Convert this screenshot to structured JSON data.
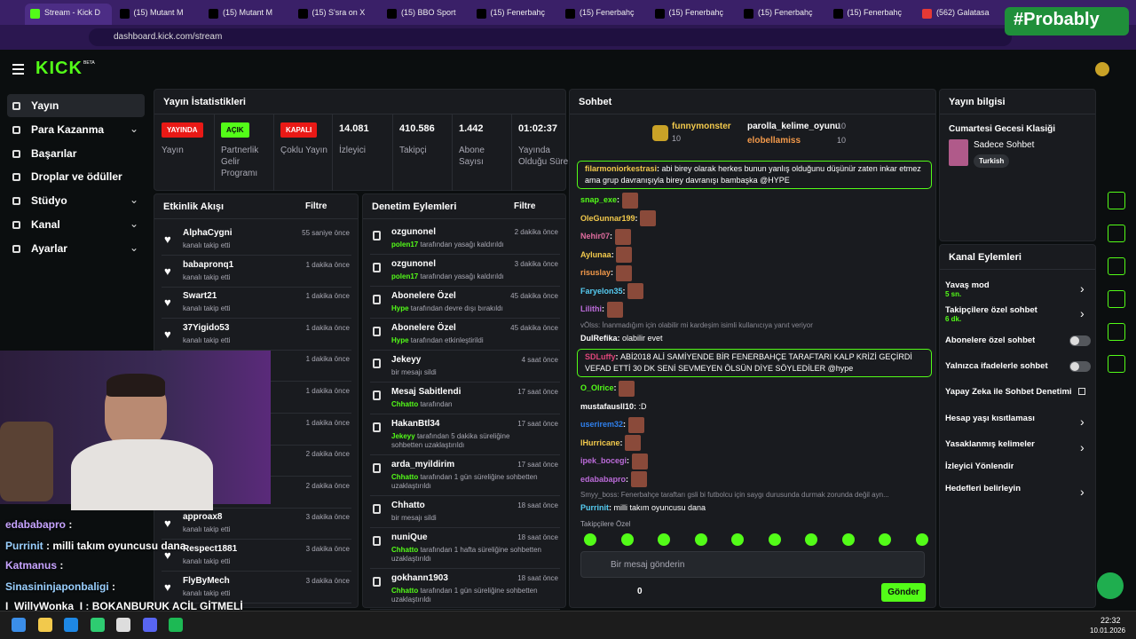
{
  "browser": {
    "tabs": [
      "Stream - Kick D",
      "(15) Mutant M",
      "(15) Mutant M",
      "(15) S'sra on X",
      "(15) BBO Sport",
      "(15) Fenerbahç",
      "(15) Fenerbahç",
      "(15) Fenerbahç",
      "(15) Fenerbahç",
      "(15) Fenerbahç",
      "(562) Galatasa"
    ],
    "address": "dashboard.kick.com/stream",
    "overlay_tag": "#Probably"
  },
  "sidebar": {
    "logo": "KICK",
    "logo_badge": "BETA",
    "nav": [
      "Yayın",
      "Para Kazanma",
      "Başarılar",
      "Droplar ve ödüller",
      "Stüdyo",
      "Kanal",
      "Ayarlar"
    ]
  },
  "stats": {
    "title": "Yayın İstatistikleri",
    "items": [
      {
        "badge": "YAYINDA",
        "label": "Yayın"
      },
      {
        "badge": "AÇIK",
        "label": "Partnerlik Gelir Programı"
      },
      {
        "badge": "KAPALI",
        "label": "Çoklu Yayın"
      },
      {
        "value": "14.081",
        "label": "İzleyici"
      },
      {
        "value": "410.586",
        "label": "Takipçi"
      },
      {
        "value": "1.442",
        "label": "Abone Sayısı"
      },
      {
        "value": "01:02:37",
        "label": "Yayında Olduğu Süre"
      }
    ]
  },
  "activity": {
    "title": "Etkinlik Akışı",
    "filter": "Filtre",
    "items": [
      {
        "name": "AlphaCygni",
        "action": "kanalı takip etti",
        "time": "55 saniye önce"
      },
      {
        "name": "babapronq1",
        "action": "kanalı takip etti",
        "time": "1 dakika önce"
      },
      {
        "name": "Swart21",
        "action": "kanalı takip etti",
        "time": "1 dakika önce"
      },
      {
        "name": "37Yigido53",
        "action": "kanalı takip etti",
        "time": "1 dakika önce"
      },
      {
        "time": "1 dakika önce"
      },
      {
        "time": "1 dakika önce"
      },
      {
        "time": "1 dakika önce"
      },
      {
        "time": "2 dakika önce"
      },
      {
        "name": "one",
        "action": "1 aylık abone oldular",
        "time": "2 dakika önce"
      },
      {
        "name": "approax8",
        "action": "kanalı takip etti",
        "time": "3 dakika önce"
      },
      {
        "name": "Respect1881",
        "action": "kanalı takip etti",
        "time": "3 dakika önce"
      },
      {
        "name": "FlyByMech",
        "action": "kanalı takip etti",
        "time": "3 dakika önce"
      }
    ]
  },
  "moderation": {
    "title": "Denetim Eylemleri",
    "filter": "Filtre",
    "items": [
      {
        "name": "ozgunonel",
        "actor": "polen17",
        "text": "tarafından yasağı kaldırıldı",
        "time": "2 dakika önce"
      },
      {
        "name": "ozgunonel",
        "actor": "polen17",
        "text": "tarafından yasağı kaldırıldı",
        "time": "3 dakika önce"
      },
      {
        "name": "Abonelere Özel",
        "actor": "Hype",
        "text": "tarafından devre dışı bırakıldı",
        "time": "45 dakika önce"
      },
      {
        "name": "Abonelere Özel",
        "actor": "Hype",
        "text": "tarafından etkinleştirildi",
        "time": "45 dakika önce"
      },
      {
        "name": "Jekeyy",
        "text": "bir mesajı sildi",
        "time": "4 saat önce"
      },
      {
        "name": "Mesaj Sabitlendi",
        "actor": "Chhatto",
        "text": "tarafından",
        "time": "17 saat önce"
      },
      {
        "name": "HakanBtl34",
        "actor": "Jekeyy",
        "text": "tarafından 5 dakika süreliğine sohbetten uzaklaştırıldı",
        "time": "17 saat önce"
      },
      {
        "name": "arda_myildirim",
        "actor": "Chhatto",
        "text": "tarafından 1 gün süreliğine sohbetten uzaklaştırıldı",
        "time": "17 saat önce"
      },
      {
        "name": "Chhatto",
        "text": "bir mesajı sildi",
        "time": "18 saat önce"
      },
      {
        "name": "nuniQue",
        "actor": "Chhatto",
        "text": "tarafından 1 hafta süreliğine sohbetten uzaklaştırıldı",
        "time": "18 saat önce"
      },
      {
        "name": "gokhann1903",
        "actor": "Chhatto",
        "text": "tarafından 1 gün süreliğine sohbetten uzaklaştırıldı",
        "time": "18 saat önce"
      }
    ]
  },
  "chat": {
    "title": "Sohbet",
    "leaders": [
      {
        "name": "funnymonster",
        "count": "10"
      },
      {
        "name": "parolla_kelime_oyunu",
        "count": "10"
      },
      {
        "name": "elobellamiss",
        "count": "10"
      }
    ],
    "messages": [
      {
        "user": "filarmoniorkestrasi",
        "color": "#f2c94c",
        "text": "abi birey olarak herkes bunun yanlış olduğunu düşünür zaten inkar etmez ama grup davranışıyla birey davranışı bambaşka @HYPE",
        "highlight": true
      },
      {
        "user": "snap_exe",
        "color": "#53fc18",
        "emote": true
      },
      {
        "user": "OleGunnar199",
        "color": "#f2c94c",
        "emote": true
      },
      {
        "user": "Nehir07",
        "color": "#e06c9f",
        "emote": true
      },
      {
        "user": "Aylunaa",
        "color": "#f2c94c",
        "emote": true
      },
      {
        "user": "risuslay",
        "color": "#f2994a",
        "emote": true
      },
      {
        "user": "Faryelon35",
        "color": "#56ccf2",
        "emote": true
      },
      {
        "user": "Lilithi",
        "color": "#bb6bd9",
        "emote": true
      },
      {
        "reply": "vÖlss: İnanmadığım için olabilir mi kardeşim isimli kullanıcıya yanıt veriyor"
      },
      {
        "user": "DulRefika",
        "color": "#ffffff",
        "text": "olabilir evet"
      },
      {
        "user": "SDLuffy",
        "color": "#e0457b",
        "text": "ABİ2018 ALİ SAMİYENDE BİR FENERBAHÇE TARAFTARI KALP KRİZİ GEÇİRDİ VEFAD ETTİ 30 DK SENİ SEVMEYEN ÖLSÜN DİYE SÖYLEDİLER @hype",
        "highlight": true
      },
      {
        "user": "O_Olrice",
        "color": "#53fc18",
        "emote": true
      },
      {
        "user": "mustafausll10",
        "color": "#ffffff",
        "text": ":D"
      },
      {
        "user": "userirem32",
        "color": "#2f80ed",
        "emote": true
      },
      {
        "user": "lHurricane",
        "color": "#f2c94c",
        "emote": true
      },
      {
        "user": "ipek_bocegi",
        "color": "#bb6bd9",
        "emote": true
      },
      {
        "user": "edababapro",
        "color": "#bb6bd9",
        "emote": true
      },
      {
        "reply": "Smyy_boss: Fenerbahçe taraftarı gsli bi futbolcu için saygı durusunda durmak zorunda değil ayn..."
      },
      {
        "user": "Purrinit",
        "color": "#56ccf2",
        "text": "milli takım oyuncusu dana"
      }
    ],
    "followers_only": "Takipçilere Özel",
    "placeholder": "Bir mesaj gönderin",
    "count": "0",
    "send": "Gönder"
  },
  "stream_info": {
    "title": "Yayın bilgisi",
    "stream_title": "Cumartesi Gecesi Klasiği",
    "category": "Sadece Sohbet",
    "tag": "Turkish"
  },
  "channel_actions": {
    "title": "Kanal Eylemleri",
    "items": [
      {
        "label": "Yavaş mod",
        "sub": "5 sn.",
        "kind": "arrow"
      },
      {
        "label": "Takipçilere özel sohbet",
        "sub": "6 dk.",
        "kind": "arrow"
      },
      {
        "label": "Abonelere özel sohbet",
        "kind": "toggle"
      },
      {
        "label": "Yalnızca ifadelerle sohbet",
        "kind": "toggle"
      },
      {
        "label": "Yapay Zeka ile Sohbet Denetimi",
        "kind": "link"
      },
      {
        "label": "Hesap yaşı kısıtlaması",
        "kind": "arrow"
      },
      {
        "label": "Yasaklanmış kelimeler",
        "kind": "arrow"
      },
      {
        "label": "İzleyici Yönlendir",
        "kind": "none"
      },
      {
        "label": "Hedefleri belirleyin",
        "kind": "arrow"
      }
    ]
  },
  "stream_overlay": {
    "lines": [
      {
        "user": "edababapro",
        "color": "#c7a4ff"
      },
      {
        "user": "Purrinit",
        "color": "#9ad0ff",
        "text": "milli takım oyuncusu dana"
      },
      {
        "user": "Katmanus",
        "color": "#c7a4ff"
      },
      {
        "user": "Sinasininjaponbaligi",
        "color": "#9ad0ff"
      },
      {
        "user": "I_WillyWonka_I",
        "color": "#ffffff",
        "text": "BOKANBURUK ACİL GİTMELİ"
      }
    ]
  },
  "taskbar": {
    "time": "22:32",
    "date": "10.01.2026"
  }
}
